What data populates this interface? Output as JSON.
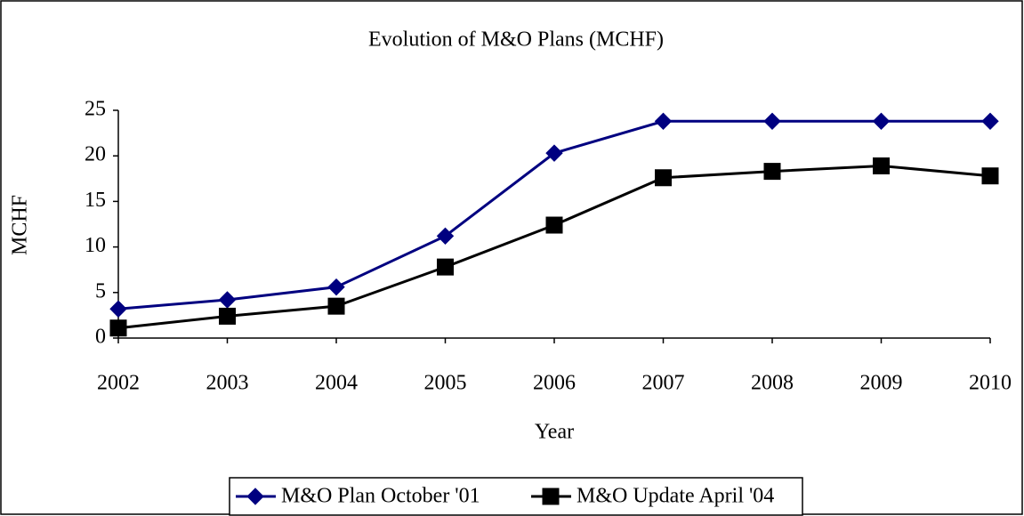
{
  "chart_data": {
    "type": "line",
    "title": "Evolution of M&O Plans (MCHF)",
    "x_label": "Year",
    "y_label": "MCHF",
    "x": [
      2002,
      2003,
      2004,
      2005,
      2006,
      2007,
      2008,
      2009,
      2010
    ],
    "series": [
      {
        "name": "M&O Plan October '01",
        "color": "#000080",
        "marker": "diamond",
        "values": [
          3.2,
          4.2,
          5.6,
          11.2,
          20.3,
          23.8,
          23.8,
          23.8,
          23.8
        ]
      },
      {
        "name": "M&O Update April '04",
        "color": "#000000",
        "marker": "square",
        "values": [
          1.1,
          2.4,
          3.5,
          7.8,
          12.4,
          17.6,
          18.3,
          18.9,
          17.8
        ]
      }
    ],
    "xlim": [
      2002,
      2010
    ],
    "xticks": [
      2002,
      2003,
      2004,
      2005,
      2006,
      2007,
      2008,
      2009,
      2010
    ],
    "ylim": [
      0,
      25
    ],
    "yticks": [
      0,
      5,
      10,
      15,
      20,
      25
    ],
    "grid": false,
    "legend": "bottom"
  }
}
